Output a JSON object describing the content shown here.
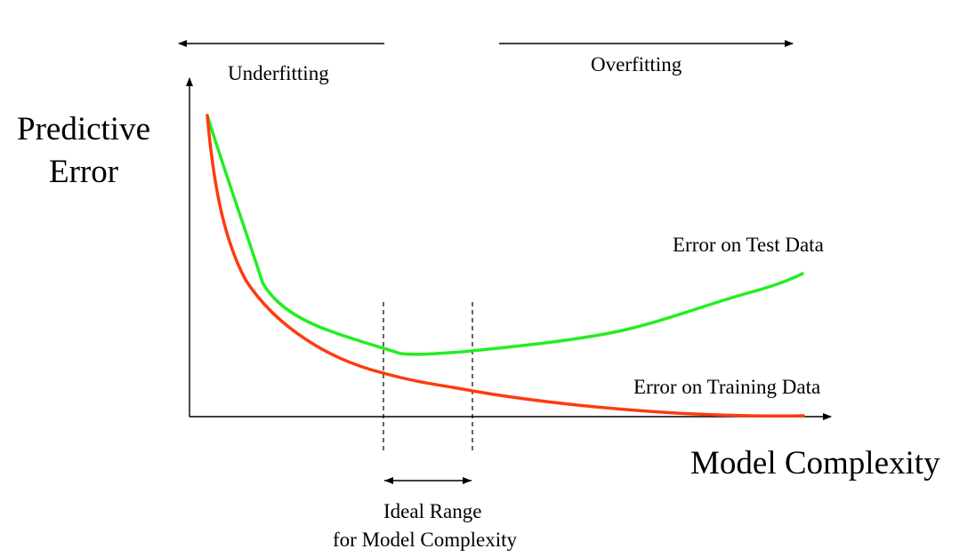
{
  "labels": {
    "underfitting": "Underfitting",
    "overfitting": "Overfitting",
    "y_axis_line1": "Predictive",
    "y_axis_line2": "Error",
    "x_axis": "Model Complexity",
    "test_curve": "Error on Test Data",
    "training_curve": "Error on Training Data",
    "ideal_line1": "Ideal Range",
    "ideal_line2": "for Model Complexity"
  },
  "colors": {
    "test_curve": "#22ee22",
    "training_curve": "#ff3a10",
    "axes": "#000000"
  }
}
